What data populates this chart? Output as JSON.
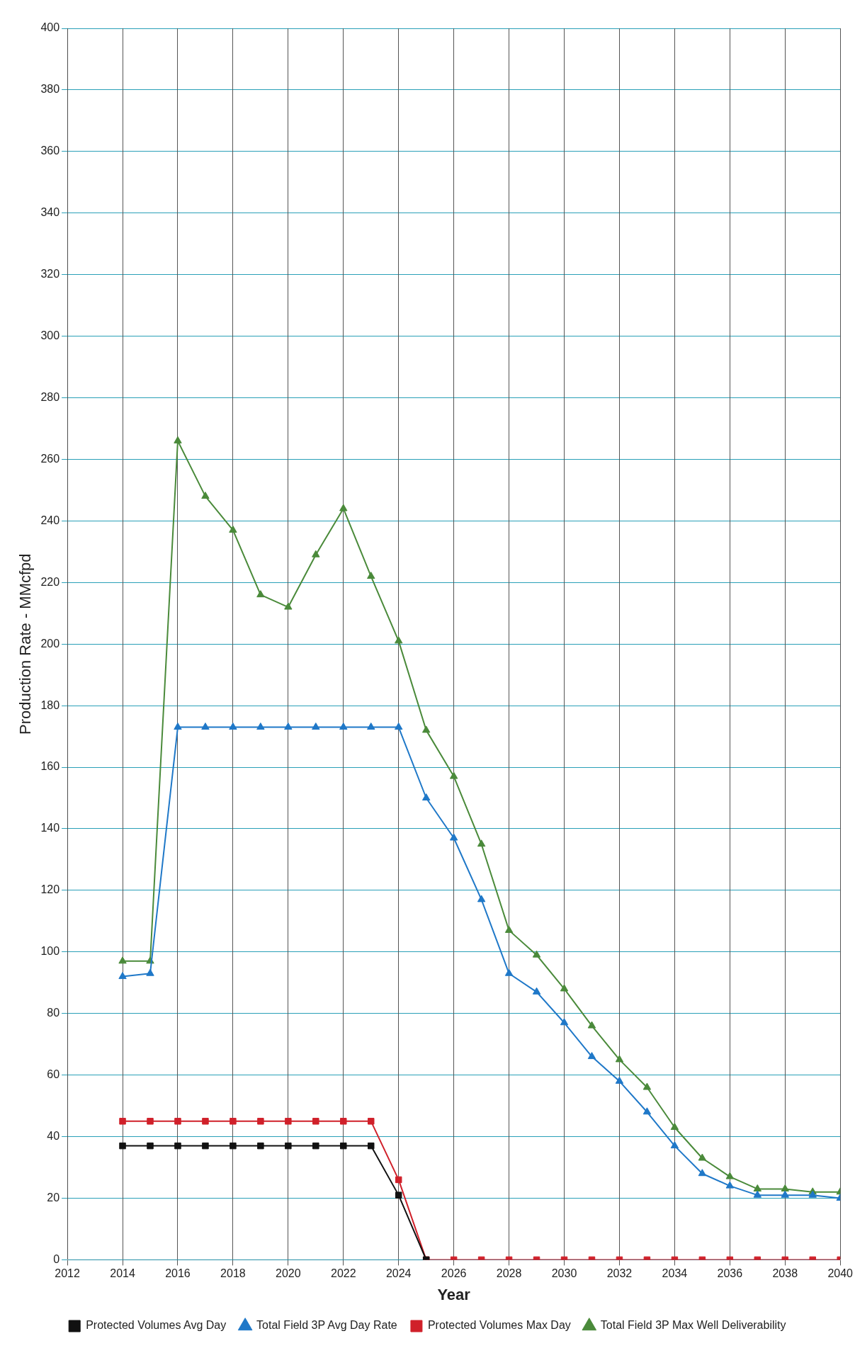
{
  "chart_data": {
    "type": "line",
    "xlabel": "Year",
    "ylabel": "Production Rate - MMcfpd",
    "x": [
      2014,
      2015,
      2016,
      2017,
      2018,
      2019,
      2020,
      2021,
      2022,
      2023,
      2024,
      2025,
      2026,
      2027,
      2028,
      2029,
      2030,
      2031,
      2032,
      2033,
      2034,
      2035,
      2036,
      2037,
      2038,
      2039,
      2040
    ],
    "xlim": [
      2012,
      2040
    ],
    "xticks": [
      2012,
      2014,
      2016,
      2018,
      2020,
      2022,
      2024,
      2026,
      2028,
      2030,
      2032,
      2034,
      2036,
      2038,
      2040
    ],
    "ylim": [
      0,
      400
    ],
    "yticks": [
      0,
      20,
      40,
      60,
      80,
      100,
      120,
      140,
      160,
      180,
      200,
      220,
      240,
      260,
      280,
      300,
      320,
      340,
      360,
      380,
      400
    ],
    "grid": true,
    "legend": "bottom",
    "series": [
      {
        "name": "Protected Volumes Avg Day",
        "color": "#111111",
        "marker": "square",
        "values": [
          37,
          37,
          37,
          37,
          37,
          37,
          37,
          37,
          37,
          37,
          21,
          0,
          null,
          null,
          null,
          null,
          null,
          null,
          null,
          null,
          null,
          null,
          null,
          null,
          null,
          null,
          null
        ]
      },
      {
        "name": "Total Field 3P Avg Day Rate",
        "color": "#1f78c8",
        "marker": "triangle",
        "values": [
          92,
          93,
          173,
          173,
          173,
          173,
          173,
          173,
          173,
          173,
          173,
          150,
          137,
          117,
          93,
          87,
          77,
          66,
          58,
          48,
          37,
          28,
          24,
          21,
          21,
          21,
          20
        ]
      },
      {
        "name": "Protected Volumes Max Day",
        "color": "#d0202a",
        "marker": "square",
        "values": [
          45,
          45,
          45,
          45,
          45,
          45,
          45,
          45,
          45,
          45,
          26,
          0,
          0,
          0,
          0,
          0,
          0,
          0,
          0,
          0,
          0,
          0,
          0,
          0,
          0,
          0,
          0
        ]
      },
      {
        "name": "Total Field 3P Max Well Deliverability",
        "color": "#4a8a3a",
        "marker": "triangle",
        "values": [
          97,
          97,
          266,
          248,
          237,
          216,
          212,
          229,
          244,
          222,
          201,
          172,
          157,
          135,
          107,
          99,
          88,
          76,
          65,
          56,
          43,
          33,
          27,
          23,
          23,
          22,
          22
        ]
      }
    ]
  }
}
